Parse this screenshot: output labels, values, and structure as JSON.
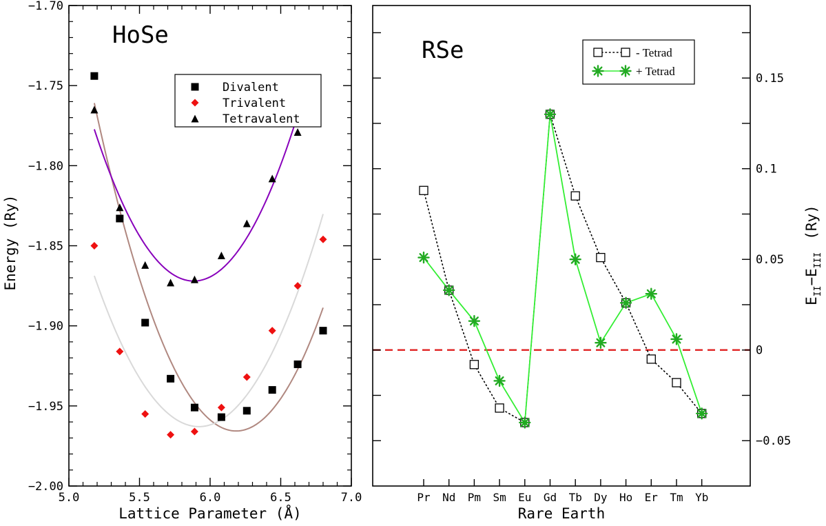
{
  "chart_data": [
    {
      "type": "scatter",
      "panel": "left",
      "inset_title": "HoSe",
      "xlabel": "Lattice Parameter (Å)",
      "ylabel": "Energy (Ry)",
      "xlim": [
        5.0,
        7.0
      ],
      "ylim": [
        -2.0,
        -1.7
      ],
      "xticks": [
        5.0,
        5.5,
        6.0,
        6.5,
        7.0
      ],
      "xtick_labels": [
        "5.0",
        "5.5",
        "6.0",
        "6.5",
        "7.0"
      ],
      "yticks": [
        -2.0,
        -1.95,
        -1.9,
        -1.85,
        -1.8,
        -1.75,
        -1.7
      ],
      "ytick_labels": [
        "−2.00",
        "−1.95",
        "−1.90",
        "−1.85",
        "−1.80",
        "−1.75",
        "−1.70"
      ],
      "legend_position": "top-right",
      "series": [
        {
          "name": "Divalent",
          "marker": "square",
          "color": "#000000",
          "fit_color": "#b08880",
          "x": [
            5.18,
            5.36,
            5.54,
            5.72,
            5.89,
            6.08,
            6.26,
            6.44,
            6.62,
            6.8
          ],
          "y": [
            -1.744,
            -1.833,
            -1.898,
            -1.933,
            -1.951,
            -1.957,
            -1.953,
            -1.94,
            -1.924,
            -1.903
          ]
        },
        {
          "name": "Trivalent",
          "marker": "diamond",
          "color": "#ee1111",
          "fit_color": "#d9d9d9",
          "x": [
            5.18,
            5.36,
            5.54,
            5.72,
            5.89,
            6.08,
            6.26,
            6.44,
            6.62,
            6.8
          ],
          "y": [
            -1.85,
            -1.916,
            -1.955,
            -1.968,
            -1.966,
            -1.951,
            -1.932,
            -1.903,
            -1.875,
            -1.846
          ]
        },
        {
          "name": "Tetravalent",
          "marker": "triangle",
          "color": "#000000",
          "fit_color": "#8800bb",
          "x": [
            5.18,
            5.36,
            5.54,
            5.72,
            5.89,
            6.08,
            6.26,
            6.44,
            6.62
          ],
          "y": [
            -1.765,
            -1.826,
            -1.862,
            -1.873,
            -1.871,
            -1.856,
            -1.836,
            -1.808,
            -1.779
          ]
        }
      ]
    },
    {
      "type": "line",
      "panel": "right",
      "inset_title": "RSe",
      "xlabel": "Rare Earth",
      "ylabel_parts": [
        "E",
        "II",
        "−E",
        "III",
        "(Ry)"
      ],
      "categories": [
        "Pr",
        "Nd",
        "Pm",
        "Sm",
        "Eu",
        "Gd",
        "Tb",
        "Dy",
        "Ho",
        "Er",
        "Tm",
        "Yb"
      ],
      "ylim": [
        -0.075,
        0.19
      ],
      "yticks": [
        -0.05,
        0.0,
        0.05,
        0.1,
        0.15
      ],
      "ytick_labels": [
        "−0.05",
        "0",
        "0.05",
        "0.1",
        "0.15"
      ],
      "reference_line": 0,
      "reference_color": "#e02020",
      "legend_position": "top-right",
      "series": [
        {
          "name": "- Tetrad",
          "marker": "open-square",
          "color": "#000000",
          "line_style": "dotted",
          "values": [
            0.088,
            0.033,
            -0.008,
            -0.032,
            -0.04,
            0.13,
            0.085,
            0.051,
            0.026,
            -0.005,
            -0.018,
            -0.035
          ]
        },
        {
          "name": "+ Tetrad",
          "marker": "asterisk",
          "color": "#22aa22",
          "line_color": "#33ee33",
          "line_style": "solid",
          "values": [
            0.051,
            0.033,
            0.016,
            -0.017,
            -0.04,
            0.13,
            0.05,
            0.004,
            0.026,
            0.031,
            0.006,
            -0.035
          ]
        }
      ]
    }
  ]
}
